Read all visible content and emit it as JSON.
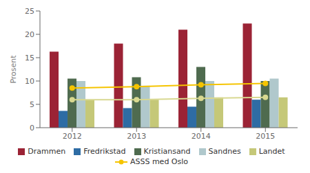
{
  "chart_data": {
    "type": "bar",
    "categories": [
      "2012",
      "2013",
      "2014",
      "2015"
    ],
    "series": [
      {
        "name": "Drammen",
        "type": "bar",
        "color": "#9B2335",
        "values": [
          16.3,
          18.0,
          21.0,
          22.3
        ]
      },
      {
        "name": "Fredrikstad",
        "type": "bar",
        "color": "#2E6CA4",
        "values": [
          3.6,
          4.2,
          4.5,
          6.0
        ]
      },
      {
        "name": "Kristiansand",
        "type": "bar",
        "color": "#4F6B4F",
        "values": [
          10.5,
          10.8,
          13.0,
          10.0
        ]
      },
      {
        "name": "Sandnes",
        "type": "bar",
        "color": "#B0C8CC",
        "values": [
          10.0,
          9.0,
          10.0,
          10.5
        ]
      },
      {
        "name": "Landet",
        "type": "bar",
        "color": "#C5C878",
        "values": [
          6.0,
          6.0,
          6.5,
          6.5
        ]
      },
      {
        "name": "ASSS med Oslo",
        "type": "line",
        "color": "#F5C400",
        "marker": "circle",
        "values": [
          8.5,
          8.8,
          9.2,
          9.5
        ]
      },
      {
        "type": "line",
        "color": "#D8D890",
        "marker": "circle",
        "values": [
          6.0,
          6.0,
          6.3,
          6.5
        ]
      }
    ],
    "ylabel": "Prosent",
    "ylim": [
      0,
      25
    ],
    "yticks": [
      0,
      5,
      10,
      15,
      20,
      25
    ],
    "grid": false,
    "legend": "bottom"
  }
}
